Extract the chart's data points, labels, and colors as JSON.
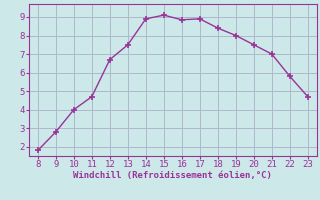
{
  "x": [
    8,
    9,
    10,
    11,
    12,
    13,
    14,
    15,
    16,
    17,
    18,
    19,
    20,
    21,
    22,
    23
  ],
  "y": [
    1.8,
    2.8,
    4.0,
    4.7,
    6.7,
    7.5,
    8.9,
    9.1,
    8.85,
    8.9,
    8.4,
    8.0,
    7.5,
    7.0,
    5.8,
    4.7
  ],
  "line_color": "#993399",
  "marker": "+",
  "bg_color": "#cce8e8",
  "grid_color": "#b0b8cc",
  "xlabel": "Windchill (Refroidissement éolien,°C)",
  "xlabel_color": "#993399",
  "tick_color": "#993399",
  "xlim": [
    7.5,
    23.5
  ],
  "ylim": [
    1.5,
    9.7
  ],
  "xticks": [
    8,
    9,
    10,
    11,
    12,
    13,
    14,
    15,
    16,
    17,
    18,
    19,
    20,
    21,
    22,
    23
  ],
  "yticks": [
    2,
    3,
    4,
    5,
    6,
    7,
    8,
    9
  ],
  "axis_color": "#993399",
  "font_family": "monospace",
  "tick_labelsize": 6.5,
  "xlabel_fontsize": 6.5
}
